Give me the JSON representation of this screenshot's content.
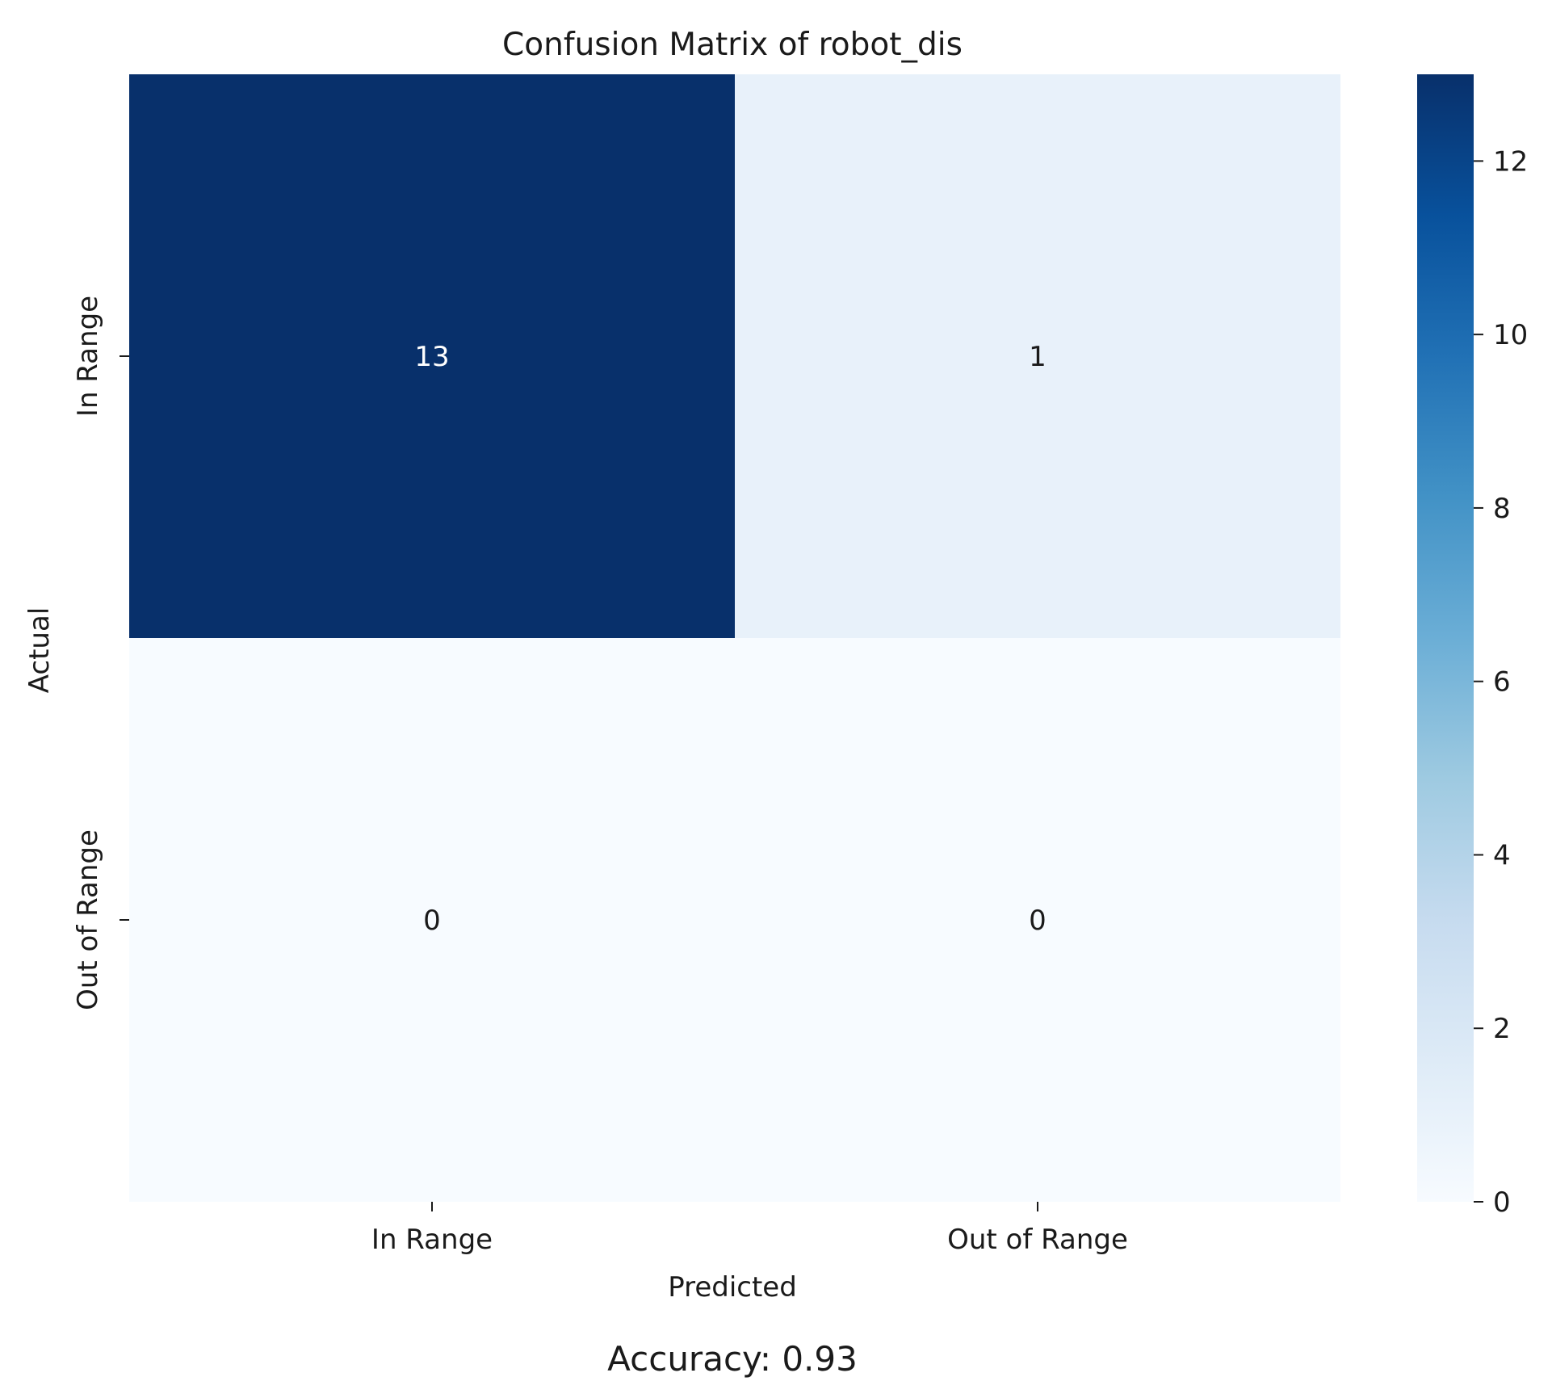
{
  "chart_data": {
    "type": "heatmap",
    "title": "Confusion Matrix of robot_dis",
    "xlabel": "Predicted",
    "ylabel": "Actual",
    "x_categories": [
      "In Range",
      "Out of Range"
    ],
    "y_categories": [
      "In Range",
      "Out of Range"
    ],
    "values": [
      [
        13,
        1
      ],
      [
        0,
        0
      ]
    ],
    "colormap": "Blues",
    "colorbar": {
      "range": [
        0,
        13
      ],
      "ticks": [
        0,
        2,
        4,
        6,
        8,
        10,
        12
      ]
    },
    "grid": false,
    "annotation": "Accuracy: 0.93"
  }
}
